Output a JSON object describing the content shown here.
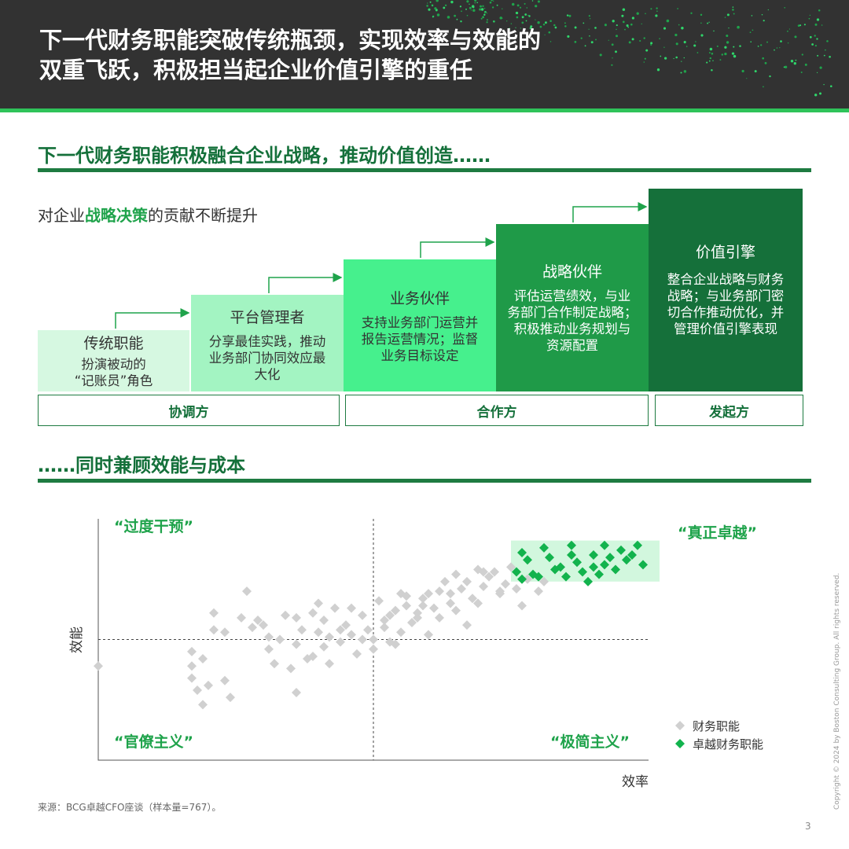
{
  "header": {
    "title": "下一代财务职能突破传统瓶颈，实现效率与效能的\n双重飞跃，积极担当起企业价值引擎的重任"
  },
  "section1": {
    "title": "下一代财务职能积极融合企业战略，推动价值创造……",
    "subtitle_pre": "对企业",
    "subtitle_highlight": "战略决策",
    "subtitle_post": "的贡献不断提升"
  },
  "steps": [
    {
      "title": "传统职能",
      "desc": "扮演被动的\n“记账员”角色",
      "color": "#d6f8e1",
      "text_color": "#333333"
    },
    {
      "title": "平台管理者",
      "desc": "分享最佳实践，推动\n业务部门协同效应最\n大化",
      "color": "#a3f4c2",
      "text_color": "#333333"
    },
    {
      "title": "业务伙伴",
      "desc": "支持业务部门运营并\n报告运营情况；监督\n业务目标设定",
      "color": "#46f08d",
      "text_color": "#333333"
    },
    {
      "title": "战略伙伴",
      "desc": "评估运营绩效，与业\n务部门合作制定战略；\n积极推动业务规划与\n资源配置",
      "color": "#1f9a48",
      "text_color": "#ffffff"
    },
    {
      "title": "价值引擎",
      "desc": "整合企业战略与财务\n战略；与业务部门密\n切合作推动优化，并\n管理价值引擎表现",
      "color": "#15703a",
      "text_color": "#ffffff"
    }
  ],
  "roles": [
    "协调方",
    "合作方",
    "发起方"
  ],
  "section2": {
    "title": "……同时兼顾效能与成本"
  },
  "chart_data": {
    "type": "scatter",
    "xlabel": "效率",
    "ylabel": "效能",
    "xlim": [
      0,
      10
    ],
    "ylim": [
      0,
      10
    ],
    "quadrant_labels": {
      "top_left": "“过度干预”",
      "top_right": "“真正卓越”",
      "bottom_left": "“官僚主义”",
      "bottom_right": "“极简主义”"
    },
    "legend": [
      {
        "name": "财务职能",
        "color": "#d0d0d0"
      },
      {
        "name": "卓越财务职能",
        "color": "#12b34d"
      }
    ],
    "legend_position": "bottom-right",
    "highlight_region": {
      "x": [
        7.5,
        10.2
      ],
      "y": [
        7.4,
        9.1
      ],
      "color": "#d2f7de"
    },
    "series": [
      {
        "name": "财务职能",
        "color": "#d0d0d0",
        "points": [
          [
            0,
            3.9
          ],
          [
            1.7,
            3.9
          ],
          [
            1.7,
            4.5
          ],
          [
            1.7,
            3.4
          ],
          [
            1.8,
            2.9
          ],
          [
            1.9,
            2.3
          ],
          [
            1.9,
            4.2
          ],
          [
            2.1,
            6.1
          ],
          [
            2.3,
            5.3
          ],
          [
            2.4,
            2.6
          ],
          [
            2.1,
            5.4
          ],
          [
            2.6,
            5.9
          ],
          [
            2.3,
            3.3
          ],
          [
            2.7,
            7.0
          ],
          [
            3.0,
            5.6
          ],
          [
            3.3,
            5.0
          ],
          [
            3.1,
            4.6
          ],
          [
            3.5,
            3.8
          ],
          [
            3.8,
            4.2
          ],
          [
            3.6,
            4.8
          ],
          [
            3.2,
            4.0
          ],
          [
            2.9,
            5.8
          ],
          [
            3.1,
            5.1
          ],
          [
            3.6,
            2.8
          ],
          [
            3.7,
            5.4
          ],
          [
            3.9,
            6.1
          ],
          [
            4.1,
            5.8
          ],
          [
            4.3,
            6.3
          ],
          [
            4.2,
            5.1
          ],
          [
            3.9,
            4.3
          ],
          [
            4.5,
            5.6
          ],
          [
            4.1,
            4.7
          ],
          [
            4.4,
            4.9
          ],
          [
            4.6,
            5.2
          ],
          [
            4.0,
            6.5
          ],
          [
            4.8,
            6.0
          ],
          [
            4.9,
            5.4
          ],
          [
            5.0,
            4.6
          ],
          [
            5.2,
            5.8
          ],
          [
            5.4,
            6.2
          ],
          [
            5.1,
            6.6
          ],
          [
            5.5,
            5.3
          ],
          [
            5.3,
            4.9
          ],
          [
            5.6,
            6.8
          ],
          [
            5.9,
            6.4
          ],
          [
            5.7,
            5.7
          ],
          [
            6.0,
            6.9
          ],
          [
            6.2,
            5.9
          ],
          [
            5.8,
            6.1
          ],
          [
            6.4,
            6.5
          ],
          [
            6.6,
            7.1
          ],
          [
            6.3,
            7.4
          ],
          [
            6.1,
            6.3
          ],
          [
            6.8,
            6.7
          ],
          [
            7.0,
            7.2
          ],
          [
            6.5,
            7.7
          ],
          [
            7.1,
            7.6
          ],
          [
            7.3,
            6.9
          ],
          [
            6.9,
            7.9
          ],
          [
            7.4,
            7.3
          ],
          [
            7.2,
            7.8
          ],
          [
            7.6,
            7.1
          ],
          [
            7.8,
            7.5
          ],
          [
            7.7,
            6.4
          ],
          [
            7.5,
            8.0
          ],
          [
            8.1,
            7.4
          ],
          [
            8.0,
            7.0
          ],
          [
            6.7,
            5.6
          ],
          [
            6.0,
            5.2
          ],
          [
            5.4,
            4.8
          ],
          [
            4.7,
            4.4
          ],
          [
            4.2,
            4.0
          ],
          [
            5.0,
            5.0
          ],
          [
            5.3,
            6.0
          ],
          [
            5.6,
            6.4
          ],
          [
            6.2,
            7.0
          ],
          [
            5.9,
            6.7
          ],
          [
            6.4,
            6.9
          ],
          [
            6.7,
            7.4
          ],
          [
            7.0,
            7.8
          ],
          [
            4.6,
            6.3
          ],
          [
            3.4,
            6.0
          ],
          [
            4.4,
            5.4
          ],
          [
            4.8,
            5.0
          ],
          [
            5.2,
            5.5
          ],
          [
            5.8,
            5.9
          ],
          [
            6.5,
            6.2
          ],
          [
            6.9,
            6.5
          ],
          [
            7.3,
            7.0
          ],
          [
            5.5,
            6.9
          ],
          [
            4.0,
            5.3
          ],
          [
            3.6,
            5.9
          ],
          [
            2.8,
            5.5
          ],
          [
            2.0,
            3.1
          ]
        ]
      },
      {
        "name": "卓越财务职能",
        "color": "#12b34d",
        "points": [
          [
            7.7,
            8.6
          ],
          [
            8.1,
            8.8
          ],
          [
            8.6,
            8.9
          ],
          [
            9.2,
            8.9
          ],
          [
            9.5,
            8.7
          ],
          [
            9.8,
            8.9
          ],
          [
            7.8,
            8.3
          ],
          [
            8.2,
            8.4
          ],
          [
            8.4,
            8.0
          ],
          [
            8.7,
            8.2
          ],
          [
            9.0,
            8.5
          ],
          [
            9.3,
            8.4
          ],
          [
            9.6,
            8.3
          ],
          [
            9.9,
            8.1
          ],
          [
            7.6,
            7.8
          ],
          [
            7.9,
            7.7
          ],
          [
            8.3,
            7.9
          ],
          [
            8.8,
            7.8
          ],
          [
            9.1,
            7.7
          ],
          [
            9.4,
            7.9
          ],
          [
            7.7,
            7.5
          ],
          [
            8.0,
            7.6
          ],
          [
            8.5,
            7.6
          ],
          [
            8.9,
            7.4
          ],
          [
            9.2,
            8.1
          ],
          [
            8.6,
            8.5
          ],
          [
            9.0,
            8.0
          ],
          [
            9.7,
            8.5
          ]
        ]
      }
    ]
  },
  "footer": {
    "source": "来源：BCG卓越CFO座谈（样本量=767）。",
    "copyright": "Copyright © 2024 by Boston Consulting Group. All rights reserved.",
    "page": "3"
  }
}
